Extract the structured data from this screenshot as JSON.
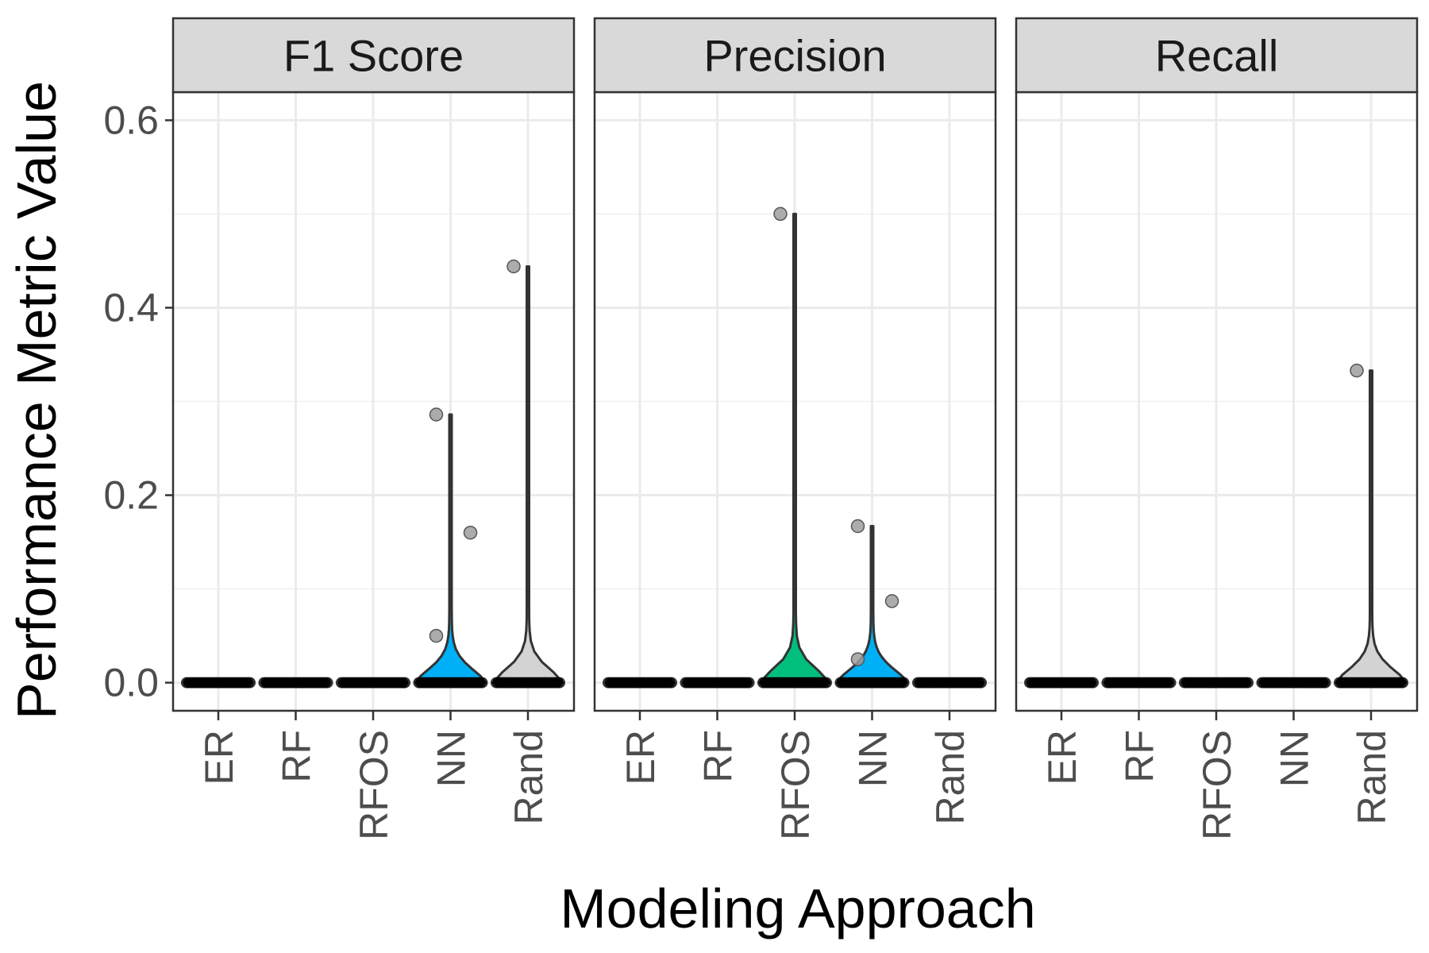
{
  "chart_data": {
    "type": "violin",
    "xlabel": "Modeling Approach",
    "ylabel": "Performance Metric Value",
    "ylim": [
      -0.03,
      0.63
    ],
    "yticks": [
      0.0,
      0.2,
      0.4,
      0.6
    ],
    "ytick_labels": [
      "0.0",
      "0.2",
      "0.4",
      "0.6"
    ],
    "categories": [
      "ER",
      "RF",
      "RFOS",
      "NN",
      "Rand"
    ],
    "grid": true,
    "legend": "none",
    "colors": {
      "ER": "#F8766D",
      "RF": "#A3A500",
      "RFOS": "#00BF7D",
      "NN": "#00B0F6",
      "Rand": "#D3D3D3"
    },
    "panels": [
      {
        "title": "F1 Score",
        "groups": [
          {
            "category": "ER",
            "max": 0.0,
            "outliers": []
          },
          {
            "category": "RF",
            "max": 0.0,
            "outliers": []
          },
          {
            "category": "RFOS",
            "max": 0.0,
            "outliers": []
          },
          {
            "category": "NN",
            "max": 0.286,
            "outliers": [
              0.286,
              0.16,
              0.05
            ]
          },
          {
            "category": "Rand",
            "max": 0.444,
            "outliers": [
              0.444
            ]
          }
        ]
      },
      {
        "title": "Precision",
        "groups": [
          {
            "category": "ER",
            "max": 0.0,
            "outliers": []
          },
          {
            "category": "RF",
            "max": 0.0,
            "outliers": []
          },
          {
            "category": "RFOS",
            "max": 0.5,
            "outliers": [
              0.5
            ]
          },
          {
            "category": "NN",
            "max": 0.167,
            "outliers": [
              0.167,
              0.087,
              0.025
            ]
          },
          {
            "category": "Rand",
            "max": 0.0,
            "outliers": []
          }
        ]
      },
      {
        "title": "Recall",
        "groups": [
          {
            "category": "ER",
            "max": 0.0,
            "outliers": []
          },
          {
            "category": "RF",
            "max": 0.0,
            "outliers": []
          },
          {
            "category": "RFOS",
            "max": 0.0,
            "outliers": []
          },
          {
            "category": "NN",
            "max": 0.0,
            "outliers": []
          },
          {
            "category": "Rand",
            "max": 0.333,
            "outliers": [
              0.333
            ]
          }
        ]
      }
    ]
  }
}
